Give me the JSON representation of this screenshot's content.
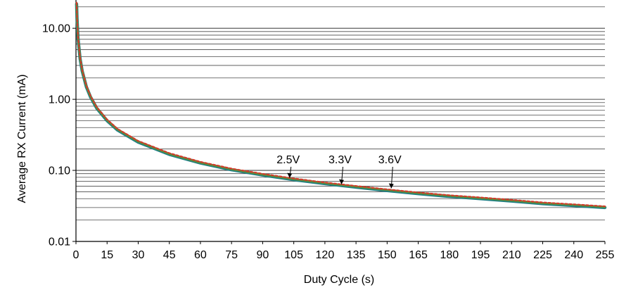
{
  "chart_data": {
    "type": "line",
    "title": "",
    "xlabel": "Duty Cycle (s)",
    "ylabel": "Average RX Current (mA)",
    "xlim": [
      0,
      255
    ],
    "ylim": [
      0.01,
      25
    ],
    "y_scale": "log",
    "grid": true,
    "x_ticks": [
      0,
      15,
      30,
      45,
      60,
      75,
      90,
      105,
      120,
      135,
      150,
      165,
      180,
      195,
      210,
      225,
      240,
      255
    ],
    "x_tick_labels": [
      "0",
      "15",
      "30",
      "45",
      "60",
      "75",
      "90",
      "105",
      "120",
      "135",
      "150",
      "165",
      "180",
      "195",
      "210",
      "225",
      "240",
      "255"
    ],
    "y_ticks": [
      0.01,
      0.1,
      1,
      10
    ],
    "y_tick_labels": [
      "0.01",
      "0.10",
      "1.00",
      "10.00"
    ],
    "colors": {
      "series_2_5V": "#1f7f86",
      "series_3_3V": "#5a8f3a",
      "series_3_6V": "#d43a2c",
      "grid": "#4a4a4a"
    },
    "series": [
      {
        "name": "2.5V",
        "x": [
          0.3,
          0.5,
          1,
          2,
          3,
          5,
          7,
          10,
          15,
          20,
          30,
          45,
          60,
          75,
          90,
          105,
          120,
          135,
          150,
          165,
          180,
          195,
          210,
          225,
          240,
          255
        ],
        "values": [
          22,
          14,
          7.2,
          3.7,
          2.5,
          1.5,
          1.08,
          0.75,
          0.5,
          0.37,
          0.25,
          0.168,
          0.127,
          0.102,
          0.086,
          0.074,
          0.065,
          0.058,
          0.052,
          0.047,
          0.043,
          0.04,
          0.037,
          0.034,
          0.032,
          0.03
        ]
      },
      {
        "name": "3.3V",
        "x": [
          0.3,
          0.5,
          1,
          2,
          3,
          5,
          7,
          10,
          15,
          20,
          30,
          45,
          60,
          75,
          90,
          105,
          120,
          135,
          150,
          165,
          180,
          195,
          210,
          225,
          240,
          255
        ],
        "values": [
          22.5,
          14.3,
          7.35,
          3.78,
          2.55,
          1.53,
          1.1,
          0.765,
          0.51,
          0.378,
          0.255,
          0.171,
          0.129,
          0.104,
          0.0875,
          0.0755,
          0.0663,
          0.0592,
          0.0531,
          0.048,
          0.0439,
          0.0408,
          0.0378,
          0.0347,
          0.0327,
          0.0306
        ]
      },
      {
        "name": "3.6V",
        "x": [
          0.3,
          0.5,
          1,
          2,
          3,
          5,
          7,
          10,
          15,
          20,
          30,
          45,
          60,
          75,
          90,
          105,
          120,
          135,
          150,
          165,
          180,
          195,
          210,
          225,
          240,
          255
        ],
        "values": [
          23,
          14.6,
          7.5,
          3.85,
          2.6,
          1.56,
          1.12,
          0.78,
          0.52,
          0.385,
          0.26,
          0.175,
          0.132,
          0.106,
          0.0895,
          0.077,
          0.0676,
          0.0604,
          0.0541,
          0.0489,
          0.0447,
          0.0416,
          0.0385,
          0.0354,
          0.0333,
          0.0312
        ]
      }
    ],
    "annotations": [
      {
        "label": "2.5V",
        "x": 103,
        "y": 0.075
      },
      {
        "label": "3.3V",
        "x": 128,
        "y": 0.061
      },
      {
        "label": "3.6V",
        "x": 152,
        "y": 0.0535
      }
    ]
  }
}
